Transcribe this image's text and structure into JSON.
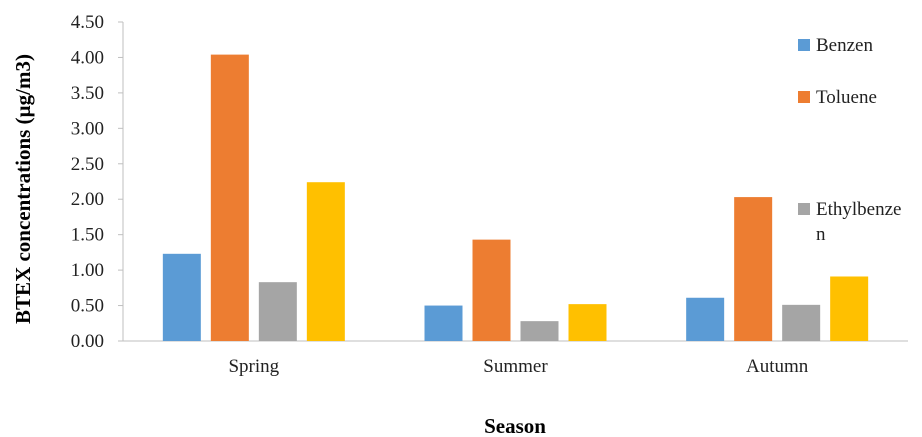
{
  "chart_data": {
    "type": "bar",
    "categories": [
      "Spring",
      "Summer",
      "Autumn"
    ],
    "series": [
      {
        "name": "Benzen",
        "values": [
          1.23,
          0.5,
          0.61
        ],
        "color": "#5B9BD5"
      },
      {
        "name": "Toluene",
        "values": [
          4.04,
          1.43,
          2.03
        ],
        "color": "#ED7D31"
      },
      {
        "name": "Ethylbenzen",
        "values": [
          0.83,
          0.28,
          0.51
        ],
        "color": "#A5A5A5"
      },
      {
        "name": "",
        "values": [
          2.24,
          0.52,
          0.91
        ],
        "color": "#FFC000"
      }
    ],
    "legend_lines": [
      [
        "Benzen"
      ],
      [
        "Toluene"
      ],
      [
        "Ethylbenze",
        "n"
      ]
    ],
    "xlabel": "Season",
    "ylabel": "BTEX concentrations (µg/m3)",
    "ylim": [
      0,
      4.5
    ],
    "yticks": [
      "0.00",
      "0.50",
      "1.00",
      "1.50",
      "2.00",
      "2.50",
      "3.00",
      "3.50",
      "4.00",
      "4.50"
    ],
    "grid": false,
    "legend_position": "right"
  }
}
